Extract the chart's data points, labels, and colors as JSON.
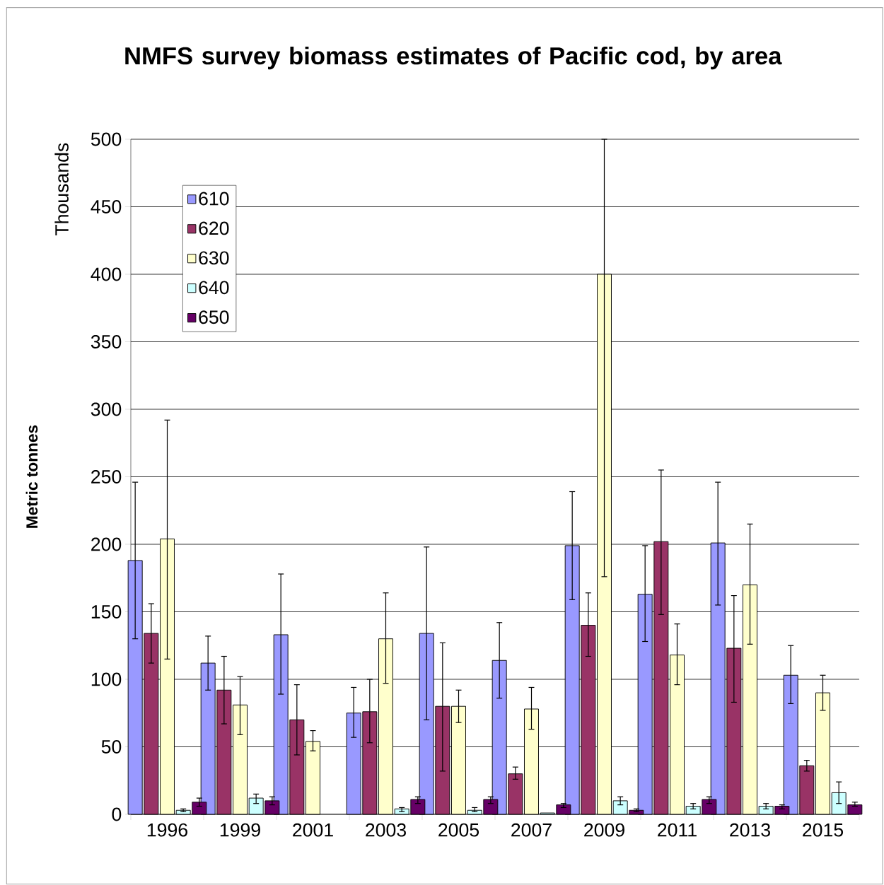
{
  "chart_data": {
    "type": "bar",
    "title": "NMFS survey biomass estimates of Pacific cod, by area",
    "ylabel": "Metric tonnes",
    "annotations": [
      "Thousands"
    ],
    "categories": [
      "1996",
      "1999",
      "2001",
      "2003",
      "2005",
      "2007",
      "2009",
      "2011",
      "2013",
      "2015"
    ],
    "series": [
      {
        "name": "610",
        "color": "#9999ff",
        "values": [
          188,
          112,
          133,
          75,
          134,
          114,
          199,
          163,
          201,
          103
        ],
        "errors": [
          [
            130,
            246
          ],
          [
            92,
            132
          ],
          [
            89,
            178
          ],
          [
            57,
            94
          ],
          [
            70,
            198
          ],
          [
            86,
            142
          ],
          [
            159,
            239
          ],
          [
            128,
            199
          ],
          [
            155,
            246
          ],
          [
            82,
            125
          ]
        ]
      },
      {
        "name": "620",
        "color": "#993366",
        "values": [
          134,
          92,
          70,
          76,
          80,
          30,
          140,
          202,
          123,
          36
        ],
        "errors": [
          [
            112,
            156
          ],
          [
            67,
            117
          ],
          [
            44,
            96
          ],
          [
            53,
            100
          ],
          [
            32,
            127
          ],
          [
            26,
            35
          ],
          [
            117,
            164
          ],
          [
            148,
            255
          ],
          [
            83,
            162
          ],
          [
            32,
            40
          ]
        ]
      },
      {
        "name": "630",
        "color": "#ffffcc",
        "values": [
          204,
          81,
          54,
          130,
          80,
          78,
          400,
          118,
          170,
          90
        ],
        "errors": [
          [
            115,
            292
          ],
          [
            59,
            102
          ],
          [
            47,
            62
          ],
          [
            97,
            164
          ],
          [
            68,
            92
          ],
          [
            63,
            94
          ],
          [
            176,
            500
          ],
          [
            96,
            141
          ],
          [
            126,
            215
          ],
          [
            77,
            103
          ]
        ]
      },
      {
        "name": "640",
        "color": "#ccffff",
        "values": [
          3,
          12,
          null,
          4,
          3,
          1,
          10,
          6,
          6,
          16
        ],
        "errors": [
          [
            2,
            4
          ],
          [
            8,
            15
          ],
          null,
          [
            2,
            5
          ],
          [
            2,
            5
          ],
          null,
          [
            7,
            13
          ],
          [
            4,
            8
          ],
          [
            4,
            8
          ],
          [
            8,
            24
          ]
        ]
      },
      {
        "name": "650",
        "color": "#660066",
        "values": [
          9,
          10,
          null,
          11,
          11,
          7,
          3,
          11,
          6,
          7
        ],
        "errors": [
          [
            6,
            12
          ],
          [
            7,
            13
          ],
          null,
          [
            8,
            13
          ],
          [
            8,
            13
          ],
          [
            5,
            8
          ],
          [
            2,
            4
          ],
          [
            8,
            13
          ],
          [
            4,
            7
          ],
          [
            6,
            9
          ]
        ]
      }
    ],
    "ylim": [
      0,
      500
    ],
    "yticks": [
      0,
      50,
      100,
      150,
      200,
      250,
      300,
      350,
      400,
      450,
      500
    ],
    "grid": "y",
    "legend": "top left"
  }
}
